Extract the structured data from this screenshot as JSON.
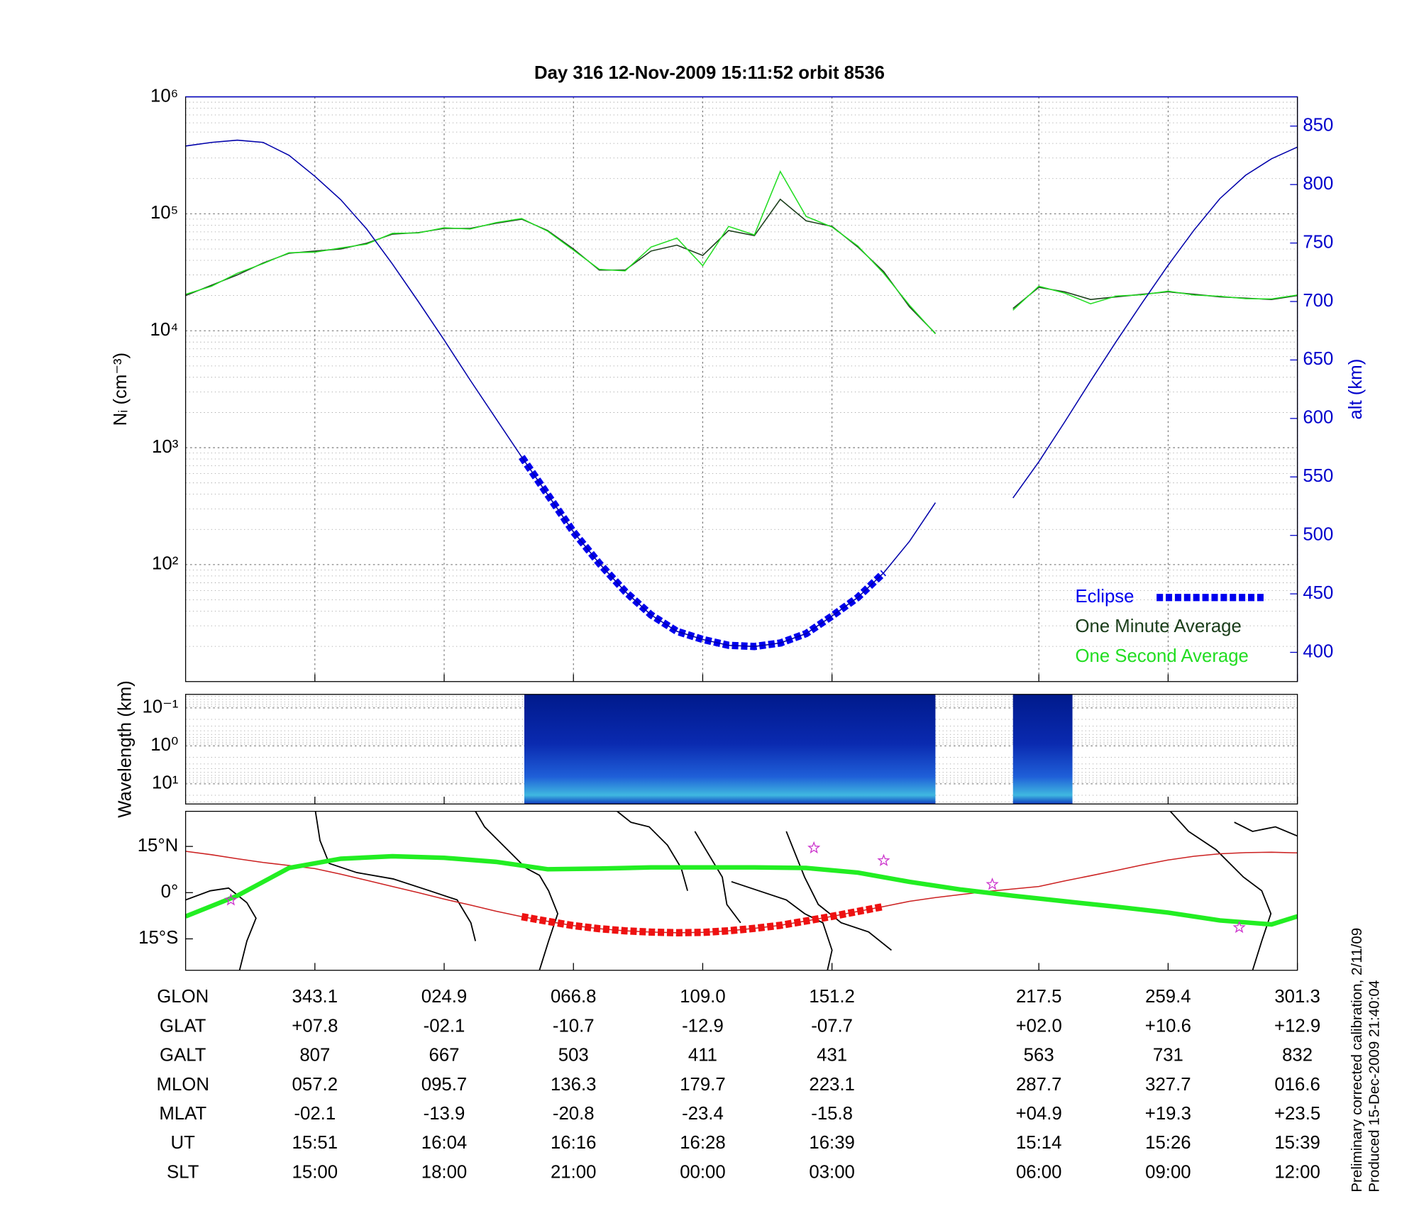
{
  "chart_data": [
    {
      "type": "line",
      "title": "Day 316  12-Nov-2009 15:11:52   orbit 8536",
      "ylabel": "Nᵢ (cm⁻³)",
      "y2label": "alt (km)",
      "log_y": true,
      "grid": true,
      "legend": "lower right",
      "xlim": [
        0,
        86
      ],
      "xticks": [
        10,
        20,
        30,
        40,
        50,
        66,
        76,
        86
      ],
      "ylim": [
        10,
        1000000
      ],
      "yticks": [
        {
          "value": 100,
          "label": "10²"
        },
        {
          "value": 1000,
          "label": "10³"
        },
        {
          "value": 10000,
          "label": "10⁴"
        },
        {
          "value": 100000,
          "label": "10⁵"
        },
        {
          "value": 1000000,
          "label": "10⁶"
        }
      ],
      "y2lim": [
        375,
        875
      ],
      "y2ticks": [
        400,
        450,
        500,
        550,
        600,
        650,
        700,
        750,
        800,
        850
      ],
      "y2color": "#0000cc",
      "x": [
        0,
        2,
        4,
        6,
        8,
        10,
        12,
        14,
        16,
        18,
        20,
        22,
        24,
        26,
        28,
        30,
        32,
        34,
        36,
        38,
        40,
        42,
        44,
        46,
        48,
        50,
        52,
        54,
        56,
        58,
        60,
        62,
        64,
        66,
        68,
        70,
        72,
        74,
        76,
        78,
        80,
        82,
        84,
        86
      ],
      "series": [
        {
          "name": "Eclipse",
          "color": "#0000ee",
          "axis": "y2",
          "style": "dashed",
          "values": [
            null,
            null,
            null,
            null,
            null,
            null,
            null,
            null,
            null,
            null,
            null,
            null,
            null,
            567,
            535,
            503,
            476,
            452,
            432,
            418,
            411,
            406,
            405,
            408,
            416,
            431,
            447,
            468,
            null,
            null,
            null,
            null,
            null,
            null,
            null,
            null,
            null,
            null,
            null,
            null,
            null,
            null,
            null,
            null
          ]
        },
        {
          "name": "One Minute Average",
          "color": "#1a3d1a",
          "values": [
            20000,
            24500,
            30000,
            38000,
            46000,
            48000,
            50000,
            56000,
            67000,
            69000,
            75000,
            75000,
            83000,
            90000,
            72000,
            50000,
            33000,
            33000,
            48000,
            54000,
            44000,
            72000,
            65000,
            133000,
            87000,
            78000,
            52000,
            32000,
            16000,
            9500,
            null,
            null,
            15500,
            23500,
            21500,
            18500,
            19500,
            20500,
            21500,
            20500,
            19500,
            19000,
            18500,
            20000
          ]
        },
        {
          "name": "One Second Average",
          "color": "#22dd22",
          "values": [
            20500,
            24000,
            31000,
            37500,
            46500,
            47000,
            51000,
            55000,
            68000,
            68500,
            76000,
            74000,
            84000,
            91000,
            71000,
            49000,
            33500,
            32500,
            52000,
            62000,
            36000,
            78000,
            66000,
            230000,
            95000,
            77000,
            53000,
            31000,
            16500,
            9400,
            null,
            null,
            15000,
            24000,
            21000,
            17000,
            19800,
            20300,
            21800,
            20200,
            19700,
            18800,
            18700,
            20200
          ]
        },
        {
          "color": "#0000aa",
          "axis": "y2",
          "values": [
            833,
            836,
            838,
            836,
            825,
            807,
            787,
            762,
            732,
            700,
            667,
            633,
            600,
            567,
            535,
            503,
            476,
            452,
            432,
            418,
            411,
            406,
            405,
            408,
            416,
            431,
            447,
            468,
            495,
            528,
            null,
            null,
            532,
            563,
            597,
            632,
            666,
            699,
            731,
            761,
            788,
            808,
            822,
            832
          ]
        }
      ]
    },
    {
      "type": "spectrogram",
      "ylabel": "Wavelength (km)",
      "log_y": true,
      "grid": true,
      "xlim": [
        0,
        86
      ],
      "xticks": [
        10,
        20,
        30,
        40,
        50,
        66,
        76,
        86
      ],
      "ylim": [
        34,
        0.044
      ],
      "yticks": [
        {
          "value": 0.1,
          "label": "10⁻¹"
        },
        {
          "value": 1,
          "label": "10⁰"
        },
        {
          "value": 10,
          "label": "10¹"
        }
      ],
      "segments": [
        [
          26.2,
          58
        ],
        [
          64,
          68.6
        ]
      ]
    },
    {
      "type": "map",
      "xlim": [
        0,
        86
      ],
      "xticks": [
        10,
        20,
        30,
        40,
        50,
        66,
        76,
        86
      ],
      "ylim": [
        -25.2,
        26.4
      ],
      "yticks": [
        {
          "value": 15,
          "label": "15°N"
        },
        {
          "value": 0,
          "label": "0°"
        },
        {
          "value": -15,
          "label": "15°S"
        }
      ],
      "x": [
        0,
        2,
        4,
        6,
        8,
        10,
        12,
        14,
        16,
        18,
        20,
        22,
        24,
        26,
        28,
        30,
        32,
        34,
        36,
        38,
        40,
        42,
        44,
        46,
        48,
        50,
        52,
        54,
        56,
        58,
        60,
        62,
        64,
        66,
        68,
        70,
        72,
        74,
        76,
        78,
        80,
        82,
        84,
        86
      ],
      "series": [
        {
          "color": "#cc2222",
          "values": [
            13.4,
            12.3,
            11,
            9.8,
            8.8,
            7.8,
            6,
            4,
            2,
            0,
            -2.1,
            -4,
            -6,
            -7.8,
            -9.3,
            -10.7,
            -11.7,
            -12.4,
            -12.8,
            -13,
            -12.9,
            -12.4,
            -11.6,
            -10.6,
            -9.2,
            -7.7,
            -6.1,
            -4.5,
            -2.8,
            -1.6,
            -0.6,
            0.4,
            1.2,
            2.0,
            3.8,
            5.5,
            7.2,
            9,
            10.6,
            11.8,
            12.6,
            13,
            13.1,
            12.9
          ]
        },
        {
          "color": "#ee1111",
          "style": "dashed",
          "values": [
            null,
            null,
            null,
            null,
            null,
            null,
            null,
            null,
            null,
            null,
            null,
            null,
            null,
            -7.8,
            -9.3,
            -10.7,
            -11.7,
            -12.4,
            -12.8,
            -13,
            -12.9,
            -12.4,
            -11.6,
            -10.6,
            -9.2,
            -7.7,
            -6.1,
            -4.5,
            null,
            null,
            null,
            null,
            null,
            null,
            null,
            null,
            null,
            null,
            null,
            null,
            null,
            null,
            null,
            null
          ]
        },
        {
          "color": "#22ee22",
          "style": "thick",
          "x": [
            0,
            4,
            8,
            12,
            16,
            20,
            24,
            28,
            32,
            36,
            40,
            44,
            48,
            52,
            56,
            60,
            64,
            68,
            72,
            76,
            80,
            84,
            86
          ],
          "values": [
            -7.7,
            -1,
            8,
            11,
            11.8,
            11.3,
            10,
            7.6,
            7.8,
            8.2,
            8.2,
            8.2,
            8.0,
            6.5,
            3.5,
            1.0,
            -1,
            -2.8,
            -4.6,
            -6.5,
            -9,
            -10.3,
            -7.7
          ]
        }
      ],
      "points": {
        "color": "#cc33cc",
        "x": [
          3.5,
          48.6,
          54,
          62.4,
          81.5
        ],
        "values": [
          -2.4,
          14.5,
          10.4,
          2.7,
          -11.3
        ]
      }
    }
  ],
  "table": {
    "rows": [
      {
        "label": "GLON",
        "values": [
          "343.1",
          "024.9",
          "066.8",
          "109.0",
          "151.2",
          "217.5",
          "259.4",
          "301.3"
        ]
      },
      {
        "label": "GLAT",
        "values": [
          "+07.8",
          "-02.1",
          "-10.7",
          "-12.9",
          "-07.7",
          "+02.0",
          "+10.6",
          "+12.9"
        ]
      },
      {
        "label": "GALT",
        "values": [
          "807",
          "667",
          "503",
          "411",
          "431",
          "563",
          "731",
          "832"
        ]
      },
      {
        "label": "MLON",
        "values": [
          "057.2",
          "095.7",
          "136.3",
          "179.7",
          "223.1",
          "287.7",
          "327.7",
          "016.6"
        ]
      },
      {
        "label": "MLAT",
        "values": [
          "-02.1",
          "-13.9",
          "-20.8",
          "-23.4",
          "-15.8",
          "+04.9",
          "+19.3",
          "+23.5"
        ]
      },
      {
        "label": "UT",
        "values": [
          "15:51",
          "16:04",
          "16:16",
          "16:28",
          "16:39",
          "15:14",
          "15:26",
          "15:39"
        ]
      },
      {
        "label": "SLT",
        "values": [
          "15:00",
          "18:00",
          "21:00",
          "00:00",
          "03:00",
          "06:00",
          "09:00",
          "12:00"
        ]
      }
    ]
  },
  "notes": [
    "Preliminary corrected calibration, 2/11/09",
    "Produced 15-Dec-2009 21:40:04"
  ]
}
